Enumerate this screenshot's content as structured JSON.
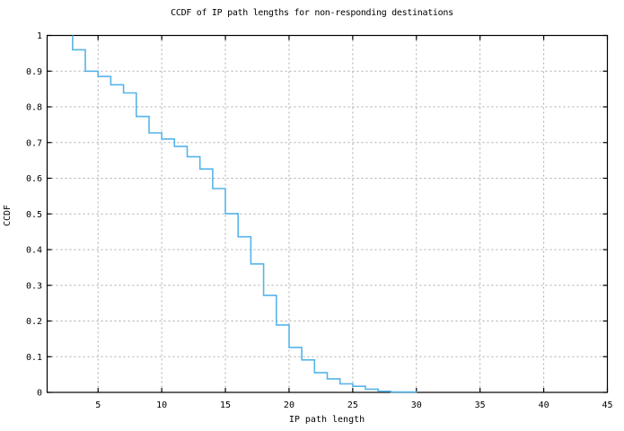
{
  "chart_data": {
    "type": "line",
    "line_style": "steps",
    "title": "CCDF of IP path lengths for non-responding destinations",
    "xlabel": "IP path length",
    "ylabel": "CCDF",
    "xlim": [
      1,
      45
    ],
    "ylim": [
      0,
      1
    ],
    "grid": true,
    "legend": "none",
    "x_ticks": [
      {
        "value": 5,
        "label": "5"
      },
      {
        "value": 10,
        "label": "10"
      },
      {
        "value": 15,
        "label": "15"
      },
      {
        "value": 20,
        "label": "20"
      },
      {
        "value": 25,
        "label": "25"
      },
      {
        "value": 30,
        "label": "30"
      },
      {
        "value": 35,
        "label": "35"
      },
      {
        "value": 40,
        "label": "40"
      },
      {
        "value": 45,
        "label": "45"
      }
    ],
    "y_ticks": [
      {
        "value": 0,
        "label": "0"
      },
      {
        "value": 0.1,
        "label": "0.1"
      },
      {
        "value": 0.2,
        "label": "0.2"
      },
      {
        "value": 0.3,
        "label": "0.3"
      },
      {
        "value": 0.4,
        "label": "0.4"
      },
      {
        "value": 0.5,
        "label": "0.5"
      },
      {
        "value": 0.6,
        "label": "0.6"
      },
      {
        "value": 0.7,
        "label": "0.7"
      },
      {
        "value": 0.8,
        "label": "0.8"
      },
      {
        "value": 0.9,
        "label": "0.9"
      },
      {
        "value": 1,
        "label": "1"
      }
    ],
    "colors": {
      "line": "#56b4e9",
      "grid": "#ababab",
      "axis": "#000000",
      "background": "#ffffff",
      "text": "#000000"
    },
    "series": [
      {
        "points": [
          [
            3,
            1.0
          ],
          [
            3,
            0.96
          ],
          [
            4,
            0.96
          ],
          [
            4,
            0.9
          ],
          [
            5,
            0.9
          ],
          [
            5,
            0.885
          ],
          [
            6,
            0.885
          ],
          [
            6,
            0.862
          ],
          [
            7,
            0.862
          ],
          [
            7,
            0.839
          ],
          [
            8,
            0.839
          ],
          [
            8,
            0.773
          ],
          [
            9,
            0.773
          ],
          [
            9,
            0.727
          ],
          [
            10,
            0.727
          ],
          [
            10,
            0.71
          ],
          [
            11,
            0.71
          ],
          [
            11,
            0.689
          ],
          [
            12,
            0.689
          ],
          [
            12,
            0.66
          ],
          [
            13,
            0.66
          ],
          [
            13,
            0.626
          ],
          [
            14,
            0.626
          ],
          [
            14,
            0.571
          ],
          [
            15,
            0.571
          ],
          [
            15,
            0.501
          ],
          [
            16,
            0.501
          ],
          [
            16,
            0.436
          ],
          [
            17,
            0.436
          ],
          [
            17,
            0.36
          ],
          [
            18,
            0.36
          ],
          [
            18,
            0.272
          ],
          [
            19,
            0.272
          ],
          [
            19,
            0.189
          ],
          [
            20,
            0.189
          ],
          [
            20,
            0.126
          ],
          [
            21,
            0.126
          ],
          [
            21,
            0.091
          ],
          [
            22,
            0.091
          ],
          [
            22,
            0.055
          ],
          [
            23,
            0.055
          ],
          [
            23,
            0.038
          ],
          [
            24,
            0.038
          ],
          [
            24,
            0.024
          ],
          [
            25,
            0.024
          ],
          [
            25,
            0.017
          ],
          [
            26,
            0.017
          ],
          [
            26,
            0.009
          ],
          [
            27,
            0.009
          ],
          [
            27,
            0.003
          ],
          [
            28,
            0.003
          ],
          [
            28,
            0.001
          ],
          [
            30,
            0.001
          ],
          [
            30,
            0.0
          ]
        ]
      }
    ]
  }
}
